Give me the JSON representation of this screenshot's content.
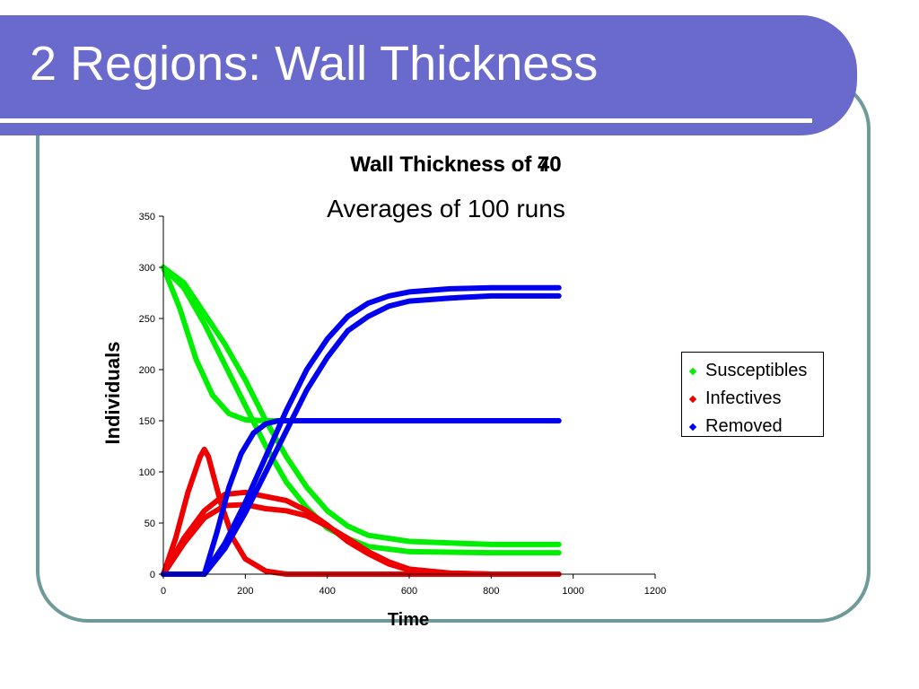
{
  "slide": {
    "title": "2 Regions: Wall Thickness"
  },
  "chart_data": {
    "type": "line",
    "title": "Wall Thickness of 70",
    "title_overlap": "Wall Thickness of 40",
    "subtitle": "Averages of 100 runs",
    "xlabel": "Time",
    "ylabel": "Individuals",
    "xlim": [
      0,
      1200
    ],
    "ylim": [
      0,
      350
    ],
    "xticks": [
      0,
      200,
      400,
      600,
      800,
      1000,
      1200
    ],
    "yticks": [
      0,
      50,
      100,
      150,
      200,
      250,
      300,
      350
    ],
    "grid": false,
    "legend_position": "right",
    "legend": [
      {
        "label": "Susceptibles",
        "color": "#00ee00"
      },
      {
        "label": "Infectives",
        "color": "#ee0000"
      },
      {
        "label": "Removed",
        "color": "#0000ee"
      }
    ],
    "series": [
      {
        "group": "Susceptibles",
        "color": "#00ee00",
        "points": [
          [
            0,
            300
          ],
          [
            40,
            260
          ],
          [
            80,
            210
          ],
          [
            120,
            175
          ],
          [
            160,
            157
          ],
          [
            200,
            151
          ],
          [
            250,
            150
          ],
          [
            300,
            150
          ],
          [
            400,
            150
          ],
          [
            600,
            150
          ],
          [
            800,
            150
          ],
          [
            965,
            150
          ]
        ]
      },
      {
        "group": "Susceptibles",
        "color": "#00ee00",
        "points": [
          [
            0,
            300
          ],
          [
            50,
            280
          ],
          [
            100,
            245
          ],
          [
            150,
            205
          ],
          [
            200,
            165
          ],
          [
            250,
            125
          ],
          [
            300,
            90
          ],
          [
            350,
            65
          ],
          [
            400,
            45
          ],
          [
            450,
            35
          ],
          [
            500,
            27
          ],
          [
            600,
            22
          ],
          [
            800,
            21
          ],
          [
            965,
            21
          ]
        ]
      },
      {
        "group": "Susceptibles",
        "color": "#00ee00",
        "points": [
          [
            0,
            300
          ],
          [
            50,
            285
          ],
          [
            100,
            255
          ],
          [
            150,
            225
          ],
          [
            200,
            190
          ],
          [
            250,
            150
          ],
          [
            300,
            115
          ],
          [
            350,
            85
          ],
          [
            400,
            62
          ],
          [
            450,
            47
          ],
          [
            500,
            38
          ],
          [
            600,
            32
          ],
          [
            800,
            29
          ],
          [
            965,
            29
          ]
        ]
      },
      {
        "group": "Infectives",
        "color": "#ee0000",
        "points": [
          [
            0,
            0
          ],
          [
            30,
            35
          ],
          [
            60,
            80
          ],
          [
            90,
            115
          ],
          [
            100,
            122
          ],
          [
            110,
            115
          ],
          [
            140,
            70
          ],
          [
            170,
            35
          ],
          [
            200,
            15
          ],
          [
            250,
            3
          ],
          [
            300,
            0
          ],
          [
            400,
            0
          ],
          [
            600,
            0
          ],
          [
            800,
            0
          ],
          [
            965,
            0
          ]
        ]
      },
      {
        "group": "Infectives",
        "color": "#ee0000",
        "points": [
          [
            0,
            0
          ],
          [
            50,
            35
          ],
          [
            100,
            62
          ],
          [
            150,
            78
          ],
          [
            200,
            80
          ],
          [
            250,
            76
          ],
          [
            300,
            72
          ],
          [
            350,
            62
          ],
          [
            400,
            48
          ],
          [
            450,
            32
          ],
          [
            500,
            20
          ],
          [
            550,
            10
          ],
          [
            600,
            4
          ],
          [
            700,
            1
          ],
          [
            800,
            0
          ],
          [
            965,
            0
          ]
        ]
      },
      {
        "group": "Infectives",
        "color": "#ee0000",
        "points": [
          [
            0,
            0
          ],
          [
            50,
            30
          ],
          [
            100,
            55
          ],
          [
            150,
            67
          ],
          [
            200,
            68
          ],
          [
            250,
            64
          ],
          [
            300,
            62
          ],
          [
            350,
            57
          ],
          [
            400,
            47
          ],
          [
            450,
            35
          ],
          [
            500,
            22
          ],
          [
            550,
            12
          ],
          [
            600,
            5
          ],
          [
            700,
            1
          ],
          [
            800,
            0
          ],
          [
            965,
            0
          ]
        ]
      },
      {
        "group": "Removed",
        "color": "#0000ee",
        "points": [
          [
            0,
            0
          ],
          [
            100,
            0
          ],
          [
            130,
            40
          ],
          [
            160,
            85
          ],
          [
            190,
            118
          ],
          [
            220,
            138
          ],
          [
            250,
            147
          ],
          [
            280,
            150
          ],
          [
            350,
            150
          ],
          [
            500,
            150
          ],
          [
            700,
            150
          ],
          [
            965,
            150
          ]
        ]
      },
      {
        "group": "Removed",
        "color": "#0000ee",
        "points": [
          [
            0,
            0
          ],
          [
            100,
            0
          ],
          [
            150,
            30
          ],
          [
            200,
            70
          ],
          [
            250,
            115
          ],
          [
            300,
            160
          ],
          [
            350,
            200
          ],
          [
            400,
            230
          ],
          [
            450,
            252
          ],
          [
            500,
            265
          ],
          [
            550,
            272
          ],
          [
            600,
            276
          ],
          [
            700,
            279
          ],
          [
            800,
            280
          ],
          [
            965,
            280
          ]
        ]
      },
      {
        "group": "Removed",
        "color": "#0000ee",
        "points": [
          [
            0,
            0
          ],
          [
            100,
            0
          ],
          [
            150,
            25
          ],
          [
            200,
            60
          ],
          [
            250,
            100
          ],
          [
            300,
            140
          ],
          [
            350,
            180
          ],
          [
            400,
            212
          ],
          [
            450,
            238
          ],
          [
            500,
            252
          ],
          [
            550,
            262
          ],
          [
            600,
            267
          ],
          [
            700,
            270
          ],
          [
            800,
            272
          ],
          [
            965,
            272
          ]
        ]
      }
    ]
  }
}
